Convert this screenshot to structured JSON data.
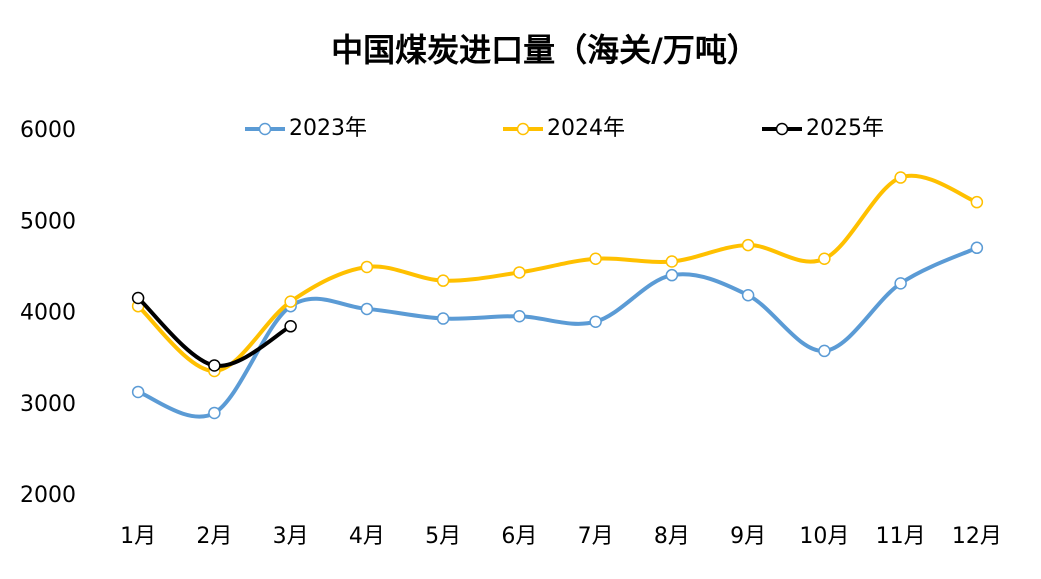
{
  "chart_data": {
    "type": "line",
    "title": "中国煤炭进口量（海关/万吨）",
    "categories": [
      "1月",
      "2月",
      "3月",
      "4月",
      "5月",
      "6月",
      "7月",
      "8月",
      "9月",
      "10月",
      "11月",
      "12月"
    ],
    "series": [
      {
        "name": "2023年",
        "color": "#5b9bd5",
        "values": [
          3140,
          2910,
          4080,
          4050,
          3945,
          3970,
          3910,
          4420,
          4200,
          3590,
          4330,
          4720
        ]
      },
      {
        "name": "2024年",
        "color": "#ffc000",
        "values": [
          4080,
          3370,
          4130,
          4510,
          4360,
          4450,
          4600,
          4570,
          4750,
          4600,
          5490,
          5220
        ]
      },
      {
        "name": "2025年",
        "color": "#000000",
        "values": [
          4170,
          3430,
          3860,
          null,
          null,
          null,
          null,
          null,
          null,
          null,
          null,
          null
        ]
      }
    ],
    "ylim": [
      2000,
      6000
    ],
    "yticks": [
      2000,
      3000,
      4000,
      5000,
      6000
    ],
    "grid": false,
    "smooth": true,
    "legend": "top"
  }
}
